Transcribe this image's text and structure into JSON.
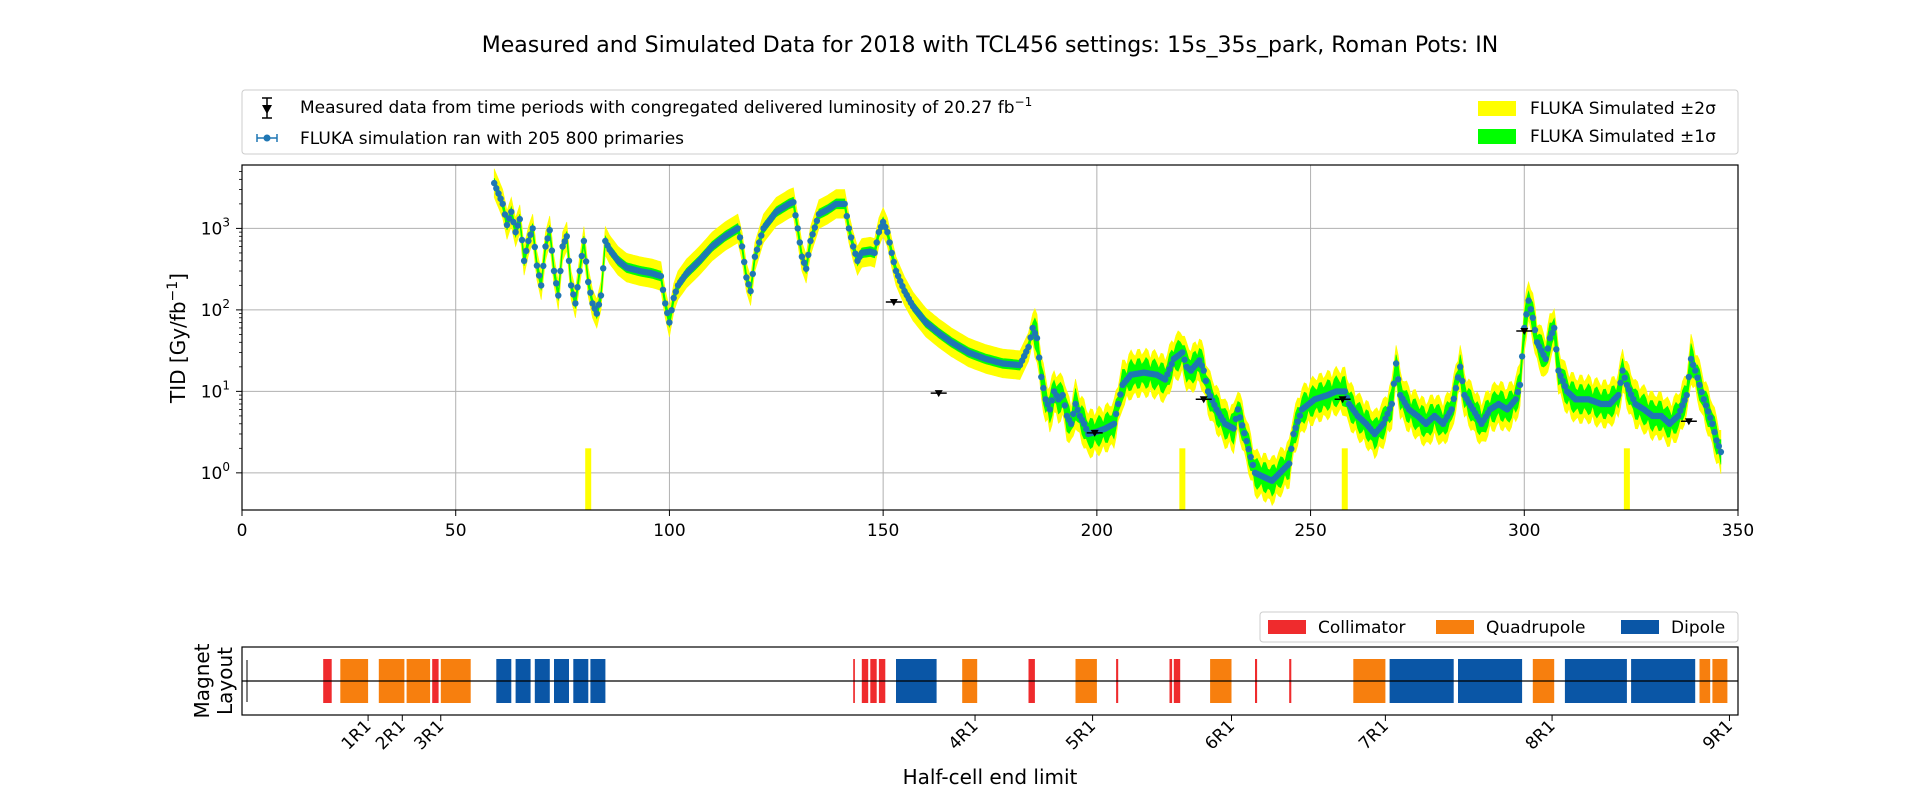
{
  "title": "Measured and Simulated Data for 2018 with TCL456 settings: 15s_35s_park, Roman Pots: IN",
  "colors": {
    "sim": "#1f77b4",
    "sigma2": "#ffff00",
    "sigma1": "#00ff00",
    "measured": "#000000",
    "collimator": "#ef2b2d",
    "quadrupole": "#f77f0e",
    "dipole": "#0a56a6",
    "grid": "#b0b0b0"
  },
  "legend_top": {
    "measured": "Measured data from time periods with congregated delivered luminosity of 20.27 fb",
    "measured_sup": "−1",
    "simulation": "FLUKA simulation ran with 205 800 primaries",
    "sigma2": "FLUKA Simulated ±2σ",
    "sigma1": "FLUKA Simulated ±1σ"
  },
  "legend_bottom": {
    "collimator": "Collimator",
    "quadrupole": "Quadrupole",
    "dipole": "Dipole"
  },
  "chart_data": [
    {
      "type": "scatter",
      "ylabel": "TID [Gy/fb",
      "ylabel_sup": "−1",
      "ylabel_end": "]",
      "xlim": [
        0,
        350
      ],
      "ylim": [
        0.35,
        6000
      ],
      "yscale": "log",
      "grid": true,
      "xticks": [
        0,
        50,
        100,
        150,
        200,
        250,
        300,
        350
      ],
      "yticks": [
        {
          "value": 1,
          "base": "10",
          "exp": "0"
        },
        {
          "value": 10,
          "base": "10",
          "exp": "1"
        },
        {
          "value": 100,
          "base": "10",
          "exp": "2"
        },
        {
          "value": 1000,
          "base": "10",
          "exp": "3"
        }
      ],
      "series": [
        {
          "name": "FLUKA simulation ran with 205 800 primaries",
          "anchors": [
            [
              59,
              3600
            ],
            [
              61,
              2000
            ],
            [
              62,
              1100
            ],
            [
              63,
              1600
            ],
            [
              64,
              900
            ],
            [
              65,
              1300
            ],
            [
              66,
              400
            ],
            [
              67,
              700
            ],
            [
              68,
              1000
            ],
            [
              69,
              350
            ],
            [
              70,
              200
            ],
            [
              71,
              600
            ],
            [
              72,
              950
            ],
            [
              73,
              300
            ],
            [
              74,
              150
            ],
            [
              75,
              600
            ],
            [
              76,
              800
            ],
            [
              77,
              200
            ],
            [
              78,
              120
            ],
            [
              79,
              300
            ],
            [
              80,
              700
            ],
            [
              81,
              220
            ],
            [
              82,
              120
            ],
            [
              83,
              90
            ],
            [
              84,
              150
            ],
            [
              85,
              700
            ],
            [
              86,
              550
            ],
            [
              88,
              400
            ],
            [
              90,
              330
            ],
            [
              93,
              300
            ],
            [
              96,
              280
            ],
            [
              98,
              260
            ],
            [
              99,
              120
            ],
            [
              100,
              70
            ],
            [
              101,
              140
            ],
            [
              102,
              200
            ],
            [
              104,
              280
            ],
            [
              107,
              400
            ],
            [
              110,
              600
            ],
            [
              113,
              800
            ],
            [
              116,
              1000
            ],
            [
              117,
              600
            ],
            [
              118,
              250
            ],
            [
              119,
              170
            ],
            [
              120,
              450
            ],
            [
              122,
              1000
            ],
            [
              125,
              1600
            ],
            [
              128,
              2000
            ],
            [
              129,
              2100
            ],
            [
              130,
              1000
            ],
            [
              131,
              450
            ],
            [
              132,
              320
            ],
            [
              133,
              700
            ],
            [
              135,
              1500
            ],
            [
              137,
              1700
            ],
            [
              139,
              2000
            ],
            [
              141,
              2000
            ],
            [
              142,
              1000
            ],
            [
              143,
              600
            ],
            [
              144,
              400
            ],
            [
              145,
              500
            ],
            [
              147,
              520
            ],
            [
              148,
              500
            ],
            [
              149,
              900
            ],
            [
              150,
              1200
            ],
            [
              151,
              900
            ],
            [
              152,
              500
            ],
            [
              153,
              300
            ],
            [
              155,
              170
            ],
            [
              157,
              110
            ],
            [
              160,
              70
            ],
            [
              163,
              52
            ],
            [
              166,
              40
            ],
            [
              170,
              30
            ],
            [
              174,
              25
            ],
            [
              178,
              22
            ],
            [
              182,
              21
            ],
            [
              184,
              35
            ],
            [
              185,
              60
            ],
            [
              186,
              45
            ],
            [
              187,
              15
            ],
            [
              188,
              8
            ],
            [
              189,
              6
            ],
            [
              190,
              10
            ],
            [
              191,
              8
            ],
            [
              192,
              9
            ],
            [
              193,
              5
            ],
            [
              194,
              4
            ],
            [
              195,
              7
            ],
            [
              196,
              5
            ],
            [
              197,
              4
            ],
            [
              198,
              3
            ],
            [
              200,
              3.2
            ],
            [
              202,
              3.5
            ],
            [
              204,
              4
            ],
            [
              205,
              7
            ],
            [
              206,
              12
            ],
            [
              208,
              16
            ],
            [
              211,
              17
            ],
            [
              214,
              16
            ],
            [
              216,
              14
            ],
            [
              218,
              25
            ],
            [
              220,
              30
            ],
            [
              221,
              20
            ],
            [
              222,
              18
            ],
            [
              224,
              24
            ],
            [
              225,
              18
            ],
            [
              226,
              10
            ],
            [
              228,
              6
            ],
            [
              230,
              4
            ],
            [
              232,
              3.5
            ],
            [
              233,
              6
            ],
            [
              237,
              1.0
            ],
            [
              241,
              0.8
            ],
            [
              245,
              1.3
            ],
            [
              246,
              3
            ],
            [
              248,
              6
            ],
            [
              251,
              8
            ],
            [
              254,
              9
            ],
            [
              256,
              10
            ],
            [
              258,
              10
            ],
            [
              259,
              7
            ],
            [
              261,
              5
            ],
            [
              263,
              4
            ],
            [
              265,
              3
            ],
            [
              267,
              4
            ],
            [
              269,
              7
            ],
            [
              270,
              22
            ],
            [
              271,
              9
            ],
            [
              273,
              6
            ],
            [
              275,
              5
            ],
            [
              277,
              4
            ],
            [
              279,
              5
            ],
            [
              281,
              4
            ],
            [
              283,
              6
            ],
            [
              285,
              20
            ],
            [
              286,
              9
            ],
            [
              288,
              6
            ],
            [
              290,
              4
            ],
            [
              292,
              6
            ],
            [
              294,
              7
            ],
            [
              296,
              6
            ],
            [
              298,
              8
            ],
            [
              299,
              12
            ],
            [
              300,
              60
            ],
            [
              301,
              130
            ],
            [
              302,
              80
            ],
            [
              303,
              40
            ],
            [
              305,
              25
            ],
            [
              306,
              45
            ],
            [
              307,
              60
            ],
            [
              308,
              18
            ],
            [
              310,
              10
            ],
            [
              312,
              8
            ],
            [
              315,
              8
            ],
            [
              318,
              7
            ],
            [
              320,
              7
            ],
            [
              322,
              9
            ],
            [
              323,
              18
            ],
            [
              324,
              12
            ],
            [
              326,
              7
            ],
            [
              328,
              6
            ],
            [
              330,
              5
            ],
            [
              332,
              5
            ],
            [
              334,
              4
            ],
            [
              336,
              5
            ],
            [
              338,
              9
            ],
            [
              339,
              25
            ],
            [
              340,
              18
            ],
            [
              342,
              8
            ],
            [
              344,
              4
            ],
            [
              345,
              2.5
            ],
            [
              346,
              1.8
            ]
          ]
        },
        {
          "name": "Measured data from time periods with congregated delivered luminosity of 20.27 fb−1",
          "points": [
            [
              152.5,
              125
            ],
            [
              163,
              9.5
            ],
            [
              199.5,
              3.1
            ],
            [
              225,
              8
            ],
            [
              257.5,
              8
            ],
            [
              300,
              55
            ],
            [
              338.5,
              4.3
            ]
          ]
        }
      ],
      "band_sigma2_scale": 1.5,
      "band_sigma1_scale": 1.15,
      "band_dips": [
        81,
        220,
        258,
        324
      ]
    },
    {
      "type": "bar",
      "ylabel_line1": "Magnet",
      "ylabel_line2": "Layout",
      "xlabel": "Half-cell end limit",
      "xlim": [
        0,
        350
      ],
      "xticks": [
        {
          "value": 29.5,
          "label": "1R1"
        },
        {
          "value": 37.5,
          "label": "2R1"
        },
        {
          "value": 46.5,
          "label": "3R1"
        },
        {
          "value": 171.5,
          "label": "4R1"
        },
        {
          "value": 199,
          "label": "5R1"
        },
        {
          "value": 231.5,
          "label": "6R1"
        },
        {
          "value": 267.5,
          "label": "7R1"
        },
        {
          "value": 306.5,
          "label": "8R1"
        },
        {
          "value": 348,
          "label": "9R1"
        }
      ],
      "magnets": [
        {
          "kind": "collimator",
          "start": 19,
          "end": 21
        },
        {
          "kind": "quadrupole",
          "start": 23,
          "end": 29.5
        },
        {
          "kind": "quadrupole",
          "start": 32,
          "end": 38
        },
        {
          "kind": "quadrupole",
          "start": 38.5,
          "end": 44
        },
        {
          "kind": "collimator",
          "start": 44.5,
          "end": 46
        },
        {
          "kind": "quadrupole",
          "start": 46.5,
          "end": 53.5
        },
        {
          "kind": "dipole",
          "start": 59.5,
          "end": 63
        },
        {
          "kind": "dipole",
          "start": 64,
          "end": 67.5
        },
        {
          "kind": "dipole",
          "start": 68.5,
          "end": 72
        },
        {
          "kind": "dipole",
          "start": 73,
          "end": 76.5
        },
        {
          "kind": "dipole",
          "start": 77.5,
          "end": 81
        },
        {
          "kind": "dipole",
          "start": 81.5,
          "end": 85
        },
        {
          "kind": "collimator",
          "start": 143,
          "end": 143.4
        },
        {
          "kind": "collimator",
          "start": 145,
          "end": 146.5
        },
        {
          "kind": "collimator",
          "start": 147,
          "end": 148.5
        },
        {
          "kind": "collimator",
          "start": 149,
          "end": 150.5
        },
        {
          "kind": "dipole",
          "start": 153,
          "end": 162.5
        },
        {
          "kind": "quadrupole",
          "start": 168.5,
          "end": 172
        },
        {
          "kind": "collimator",
          "start": 184,
          "end": 185.5
        },
        {
          "kind": "quadrupole",
          "start": 195,
          "end": 200
        },
        {
          "kind": "collimator",
          "start": 204.5,
          "end": 205
        },
        {
          "kind": "collimator",
          "start": 217,
          "end": 217.6
        },
        {
          "kind": "collimator",
          "start": 218,
          "end": 219.5
        },
        {
          "kind": "quadrupole",
          "start": 226.5,
          "end": 231.5
        },
        {
          "kind": "collimator",
          "start": 237,
          "end": 237.5
        },
        {
          "kind": "collimator",
          "start": 245,
          "end": 245.5
        },
        {
          "kind": "quadrupole",
          "start": 260,
          "end": 267.5
        },
        {
          "kind": "dipole",
          "start": 268.5,
          "end": 283.5
        },
        {
          "kind": "dipole",
          "start": 284.5,
          "end": 299.5
        },
        {
          "kind": "quadrupole",
          "start": 302,
          "end": 307
        },
        {
          "kind": "dipole",
          "start": 309.5,
          "end": 324
        },
        {
          "kind": "dipole",
          "start": 325,
          "end": 340
        },
        {
          "kind": "quadrupole",
          "start": 341,
          "end": 343.5
        },
        {
          "kind": "quadrupole",
          "start": 344,
          "end": 347.5
        }
      ]
    }
  ]
}
